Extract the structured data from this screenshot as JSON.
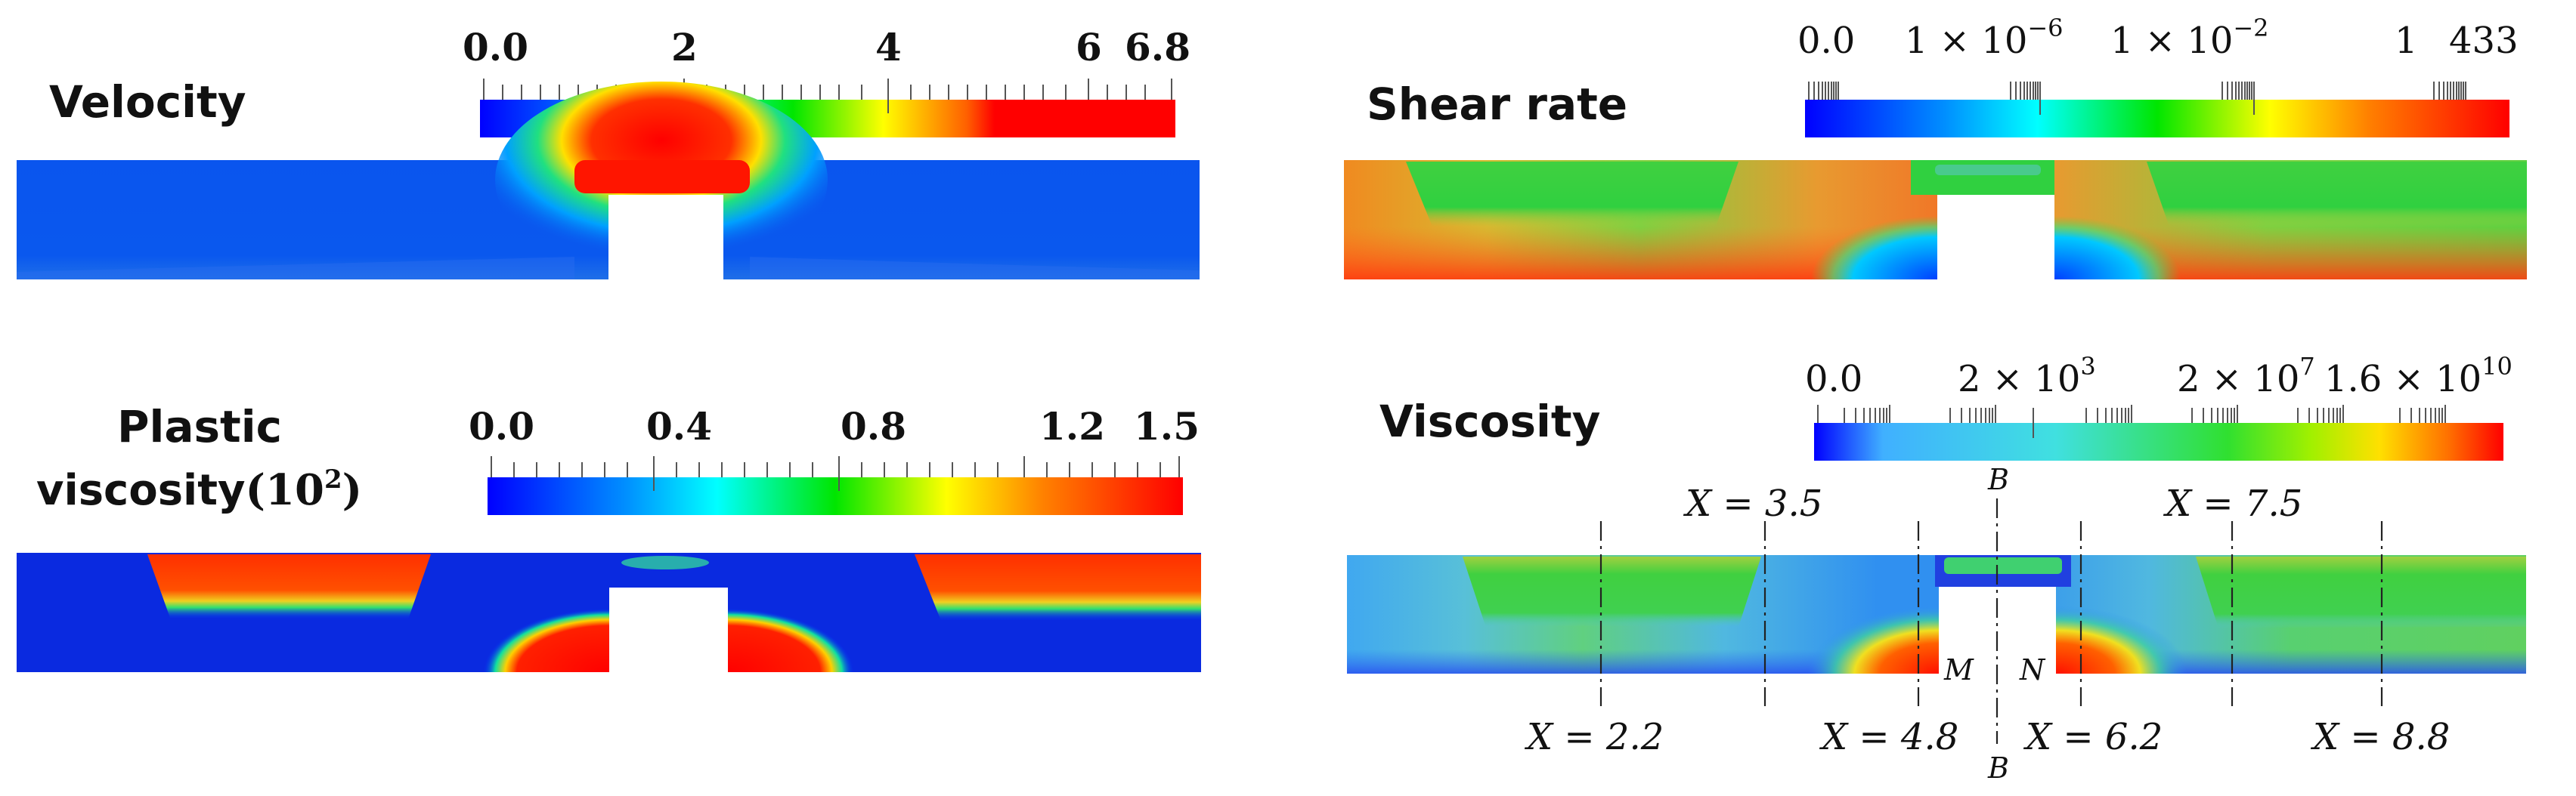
{
  "panels": {
    "velocity": {
      "title": "Velocity",
      "ticks": [
        "0.0",
        "2",
        "4",
        "6",
        "6.8"
      ]
    },
    "shear_rate": {
      "title": "Shear rate",
      "ticks": [
        "0.0",
        "1 × 10",
        "−6",
        "1 × 10",
        "−2",
        "1",
        "433"
      ]
    },
    "plastic_viscosity": {
      "title_line1": "Plastic",
      "title_line2": "viscosity",
      "title_scale": "(10",
      "title_exp": "2",
      "title_close": ")",
      "ticks": [
        "0.0",
        "0.4",
        "0.8",
        "1.2",
        "1.5"
      ]
    },
    "viscosity": {
      "title": "Viscosity",
      "ticks": [
        "0.0",
        "2 × 10",
        "3",
        "2 × 10",
        "7",
        "1.6 × 10",
        "10"
      ]
    }
  },
  "annotations": {
    "section_top": [
      "X = 3.5",
      "X = 7.5"
    ],
    "section_bottom": [
      "X = 2.2",
      "X = 4.8",
      "X = 6.2",
      "X = 8.8"
    ],
    "point_b_top": "B",
    "point_b_bottom": "B",
    "point_m": "M",
    "point_n": "N"
  },
  "colors": {
    "jet_blue": "#0000ff",
    "jet_cyan": "#00ffff",
    "jet_green": "#00e600",
    "jet_yellow": "#ffff00",
    "jet_red": "#ff0000"
  }
}
